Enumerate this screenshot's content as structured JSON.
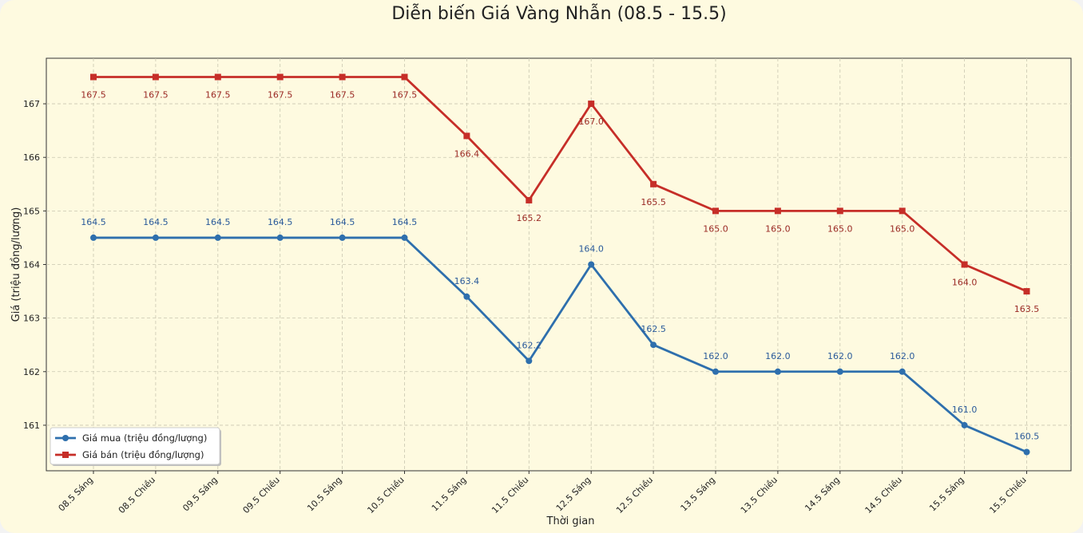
{
  "chart_data": {
    "type": "line",
    "title": "Diễn biến Giá Vàng Nhẫn (08.5 - 15.5)",
    "xlabel": "Thời gian",
    "ylabel": "Giá (triệu đồng/lượng)",
    "categories": [
      "08.5 Sáng",
      "08.5 Chiều",
      "09.5 Sáng",
      "09.5 Chiều",
      "10.5 Sáng",
      "10.5 Chiều",
      "11.5 Sáng",
      "11.5 Chiều",
      "12.5 Sáng",
      "12.5 Chiều",
      "13.5 Sáng",
      "13.5 Chiều",
      "14.5 Sáng",
      "14.5 Chiều",
      "15.5 Sáng",
      "15.5 Chiều"
    ],
    "ylim": [
      160.15,
      167.85
    ],
    "yticks": [
      161,
      162,
      163,
      164,
      165,
      166,
      167
    ],
    "grid": true,
    "legend_position": "lower-left",
    "series": [
      {
        "name": "Giá mua (triệu đồng/lượng)",
        "color": "#2e6fad",
        "marker": "circle",
        "label_position": "above",
        "values": [
          164.5,
          164.5,
          164.5,
          164.5,
          164.5,
          164.5,
          163.4,
          162.2,
          164.0,
          162.5,
          162.0,
          162.0,
          162.0,
          162.0,
          161.0,
          160.5
        ]
      },
      {
        "name": "Giá bán (triệu đồng/lượng)",
        "color": "#c62e28",
        "marker": "square",
        "label_position": "below",
        "values": [
          167.5,
          167.5,
          167.5,
          167.5,
          167.5,
          167.5,
          166.4,
          165.2,
          167.0,
          165.5,
          165.0,
          165.0,
          165.0,
          165.0,
          164.0,
          163.5
        ]
      }
    ]
  },
  "colors": {
    "background": "#fefae0",
    "grid": "#c9c6b0",
    "buy_label": "#2a5a9a",
    "sell_label": "#9a2a24"
  }
}
